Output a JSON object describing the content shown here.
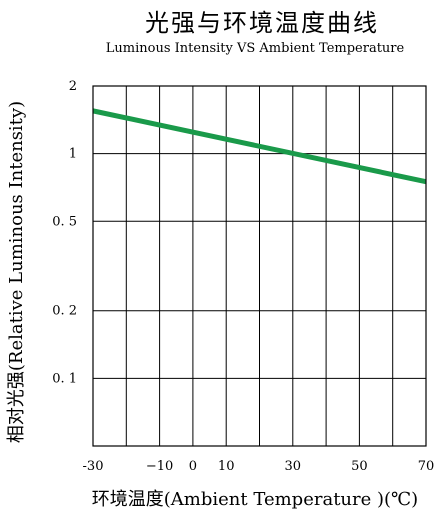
{
  "chart_data": {
    "type": "line",
    "title": "光强与环境温度曲线",
    "subtitle": "Luminous Intensity VS Ambient Temperature",
    "xlabel": "环境温度(Ambient Temperature )(℃)",
    "ylabel": "相对光强(Relative Luminous Intensity)",
    "x_ticks": [
      {
        "value": -30,
        "label": "-30"
      },
      {
        "value": -10,
        "label": "−10"
      },
      {
        "value": 0,
        "label": "0"
      },
      {
        "value": 10,
        "label": "10"
      },
      {
        "value": 30,
        "label": "30"
      },
      {
        "value": 50,
        "label": "50"
      },
      {
        "value": 70,
        "label": "70"
      }
    ],
    "y_ticks": [
      {
        "value": 2,
        "label": "2"
      },
      {
        "value": 1,
        "label": "1"
      },
      {
        "value": 0.5,
        "label": "0. 5"
      },
      {
        "value": 0.2,
        "label": "0. 2"
      },
      {
        "value": 0.1,
        "label": "0. 1"
      }
    ],
    "xlim": [
      -30,
      70
    ],
    "ylim": [
      0.05,
      2
    ],
    "y_scale": "log",
    "grid": true,
    "series": [
      {
        "color": "#1a9a4a",
        "x": [
          -30,
          70
        ],
        "y": [
          1.55,
          0.75
        ]
      }
    ]
  }
}
